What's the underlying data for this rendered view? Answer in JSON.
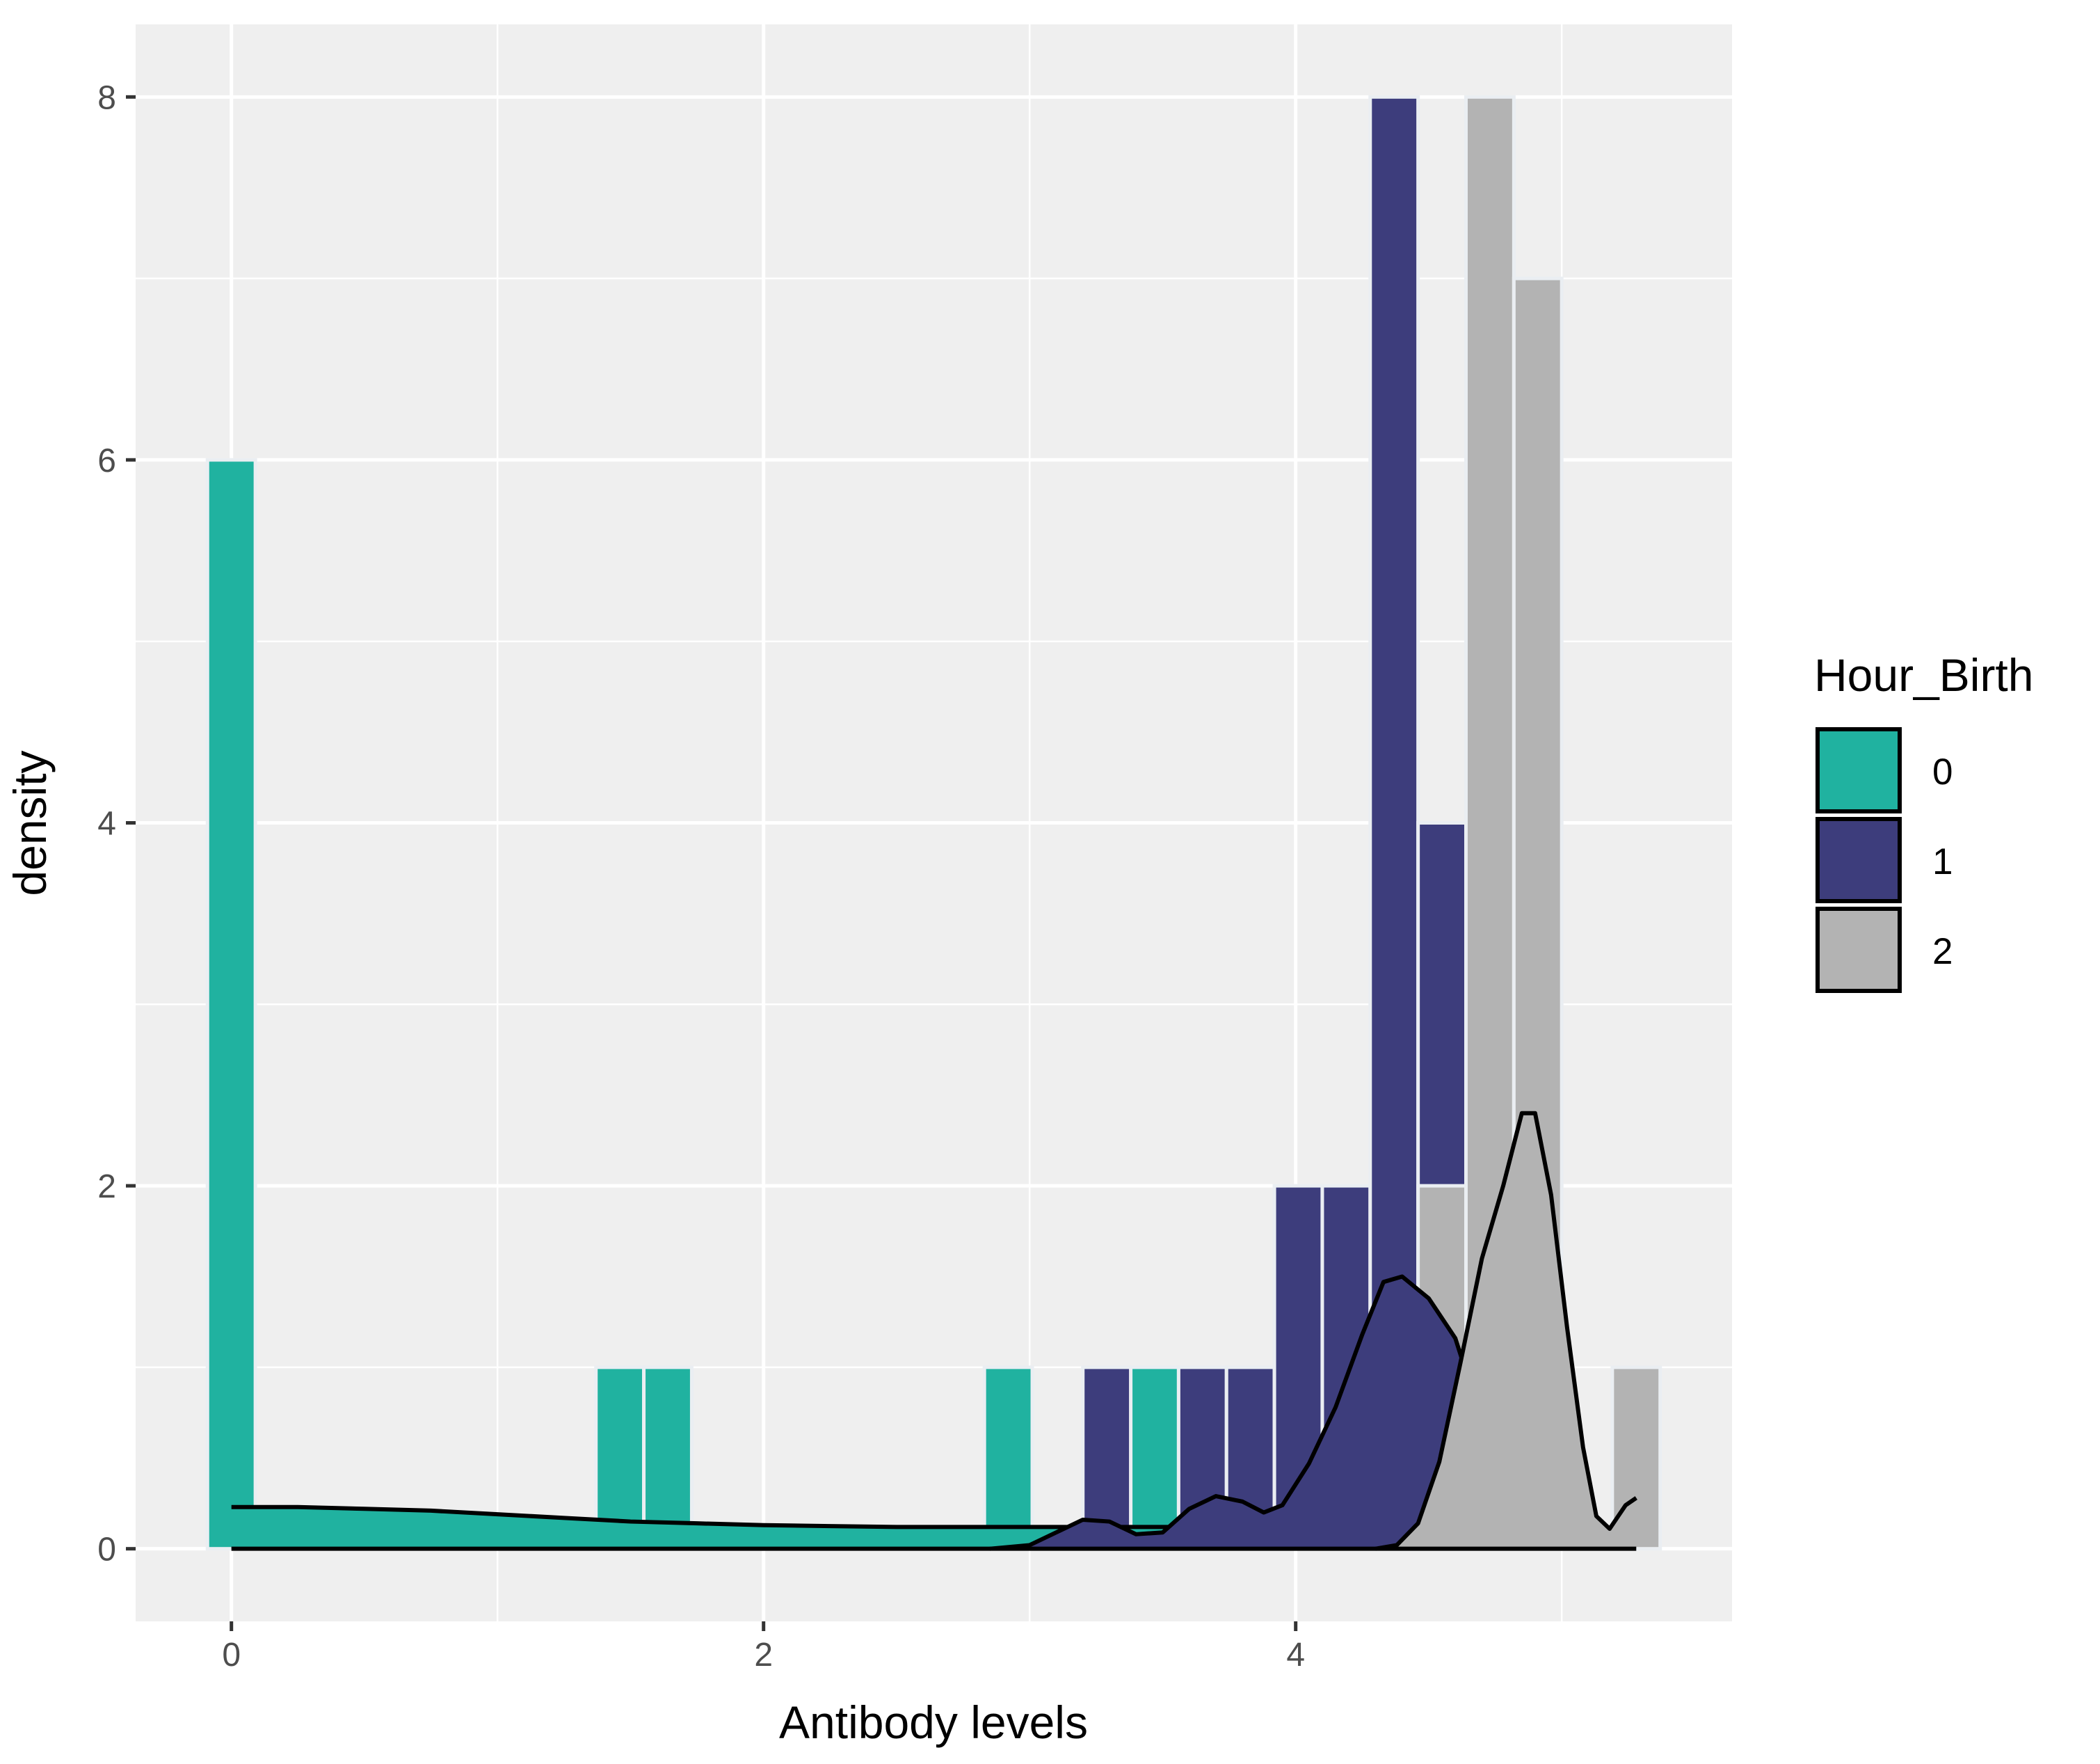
{
  "chart_data": {
    "type": "bar",
    "xlabel": "Antibody levels",
    "ylabel": "density",
    "xlim": [
      -0.36,
      5.64
    ],
    "ylim": [
      -0.4,
      8.4
    ],
    "x_ticks": [
      0,
      2,
      4
    ],
    "y_ticks": [
      0,
      2,
      4,
      6,
      8
    ],
    "grid": true,
    "legend": {
      "title": "Hour_Birth",
      "position": "right",
      "entries": [
        "0",
        "1",
        "2"
      ]
    },
    "colors": {
      "0": "#20b2a0",
      "1": "#3d3d7c",
      "2": "#b3b3b3",
      "panel": "#efefef",
      "grid": "#ffffff"
    },
    "series": [
      {
        "name": "0",
        "bins": [
          {
            "x": 0.0,
            "value": 6
          },
          {
            "x": 1.46,
            "value": 1
          },
          {
            "x": 1.64,
            "value": 1
          },
          {
            "x": 2.92,
            "value": 1
          },
          {
            "x": 3.47,
            "value": 1
          }
        ],
        "density": [
          [
            0.0,
            0.23
          ],
          [
            0.25,
            0.23
          ],
          [
            0.5,
            0.22
          ],
          [
            0.75,
            0.21
          ],
          [
            1.0,
            0.19
          ],
          [
            1.25,
            0.17
          ],
          [
            1.5,
            0.15
          ],
          [
            1.75,
            0.14
          ],
          [
            2.0,
            0.13
          ],
          [
            2.25,
            0.125
          ],
          [
            2.5,
            0.12
          ],
          [
            2.75,
            0.12
          ],
          [
            3.0,
            0.12
          ],
          [
            3.25,
            0.12
          ],
          [
            3.55,
            0.12
          ]
        ]
      },
      {
        "name": "1",
        "bins": [
          {
            "x": 3.29,
            "value": 1
          },
          {
            "x": 3.65,
            "value": 1
          },
          {
            "x": 3.83,
            "value": 1
          },
          {
            "x": 4.01,
            "value": 2
          },
          {
            "x": 4.19,
            "value": 2
          },
          {
            "x": 4.37,
            "value": 8
          },
          {
            "x": 4.55,
            "value": 4
          }
        ],
        "density": [
          [
            2.85,
            0.0
          ],
          [
            3.0,
            0.02
          ],
          [
            3.1,
            0.09
          ],
          [
            3.2,
            0.16
          ],
          [
            3.3,
            0.15
          ],
          [
            3.4,
            0.08
          ],
          [
            3.5,
            0.09
          ],
          [
            3.6,
            0.22
          ],
          [
            3.7,
            0.29
          ],
          [
            3.8,
            0.26
          ],
          [
            3.88,
            0.2
          ],
          [
            3.95,
            0.24
          ],
          [
            4.05,
            0.47
          ],
          [
            4.15,
            0.78
          ],
          [
            4.25,
            1.18
          ],
          [
            4.33,
            1.47
          ],
          [
            4.4,
            1.5
          ],
          [
            4.5,
            1.38
          ],
          [
            4.6,
            1.16
          ],
          [
            4.7,
            0.7
          ],
          [
            4.8,
            0.25
          ],
          [
            4.9,
            0.04
          ],
          [
            5.0,
            0.0
          ]
        ]
      },
      {
        "name": "2",
        "bins": [
          {
            "x": 4.55,
            "value": 2
          },
          {
            "x": 4.73,
            "value": 8
          },
          {
            "x": 4.91,
            "value": 7
          },
          {
            "x": 5.28,
            "value": 1
          }
        ],
        "density": [
          [
            4.3,
            0.0
          ],
          [
            4.38,
            0.02
          ],
          [
            4.46,
            0.14
          ],
          [
            4.54,
            0.48
          ],
          [
            4.62,
            1.03
          ],
          [
            4.7,
            1.6
          ],
          [
            4.78,
            2.0
          ],
          [
            4.85,
            2.4
          ],
          [
            4.9,
            2.4
          ],
          [
            4.96,
            1.95
          ],
          [
            5.02,
            1.22
          ],
          [
            5.08,
            0.56
          ],
          [
            5.13,
            0.18
          ],
          [
            5.18,
            0.11
          ],
          [
            5.24,
            0.24
          ],
          [
            5.28,
            0.28
          ]
        ]
      }
    ]
  }
}
